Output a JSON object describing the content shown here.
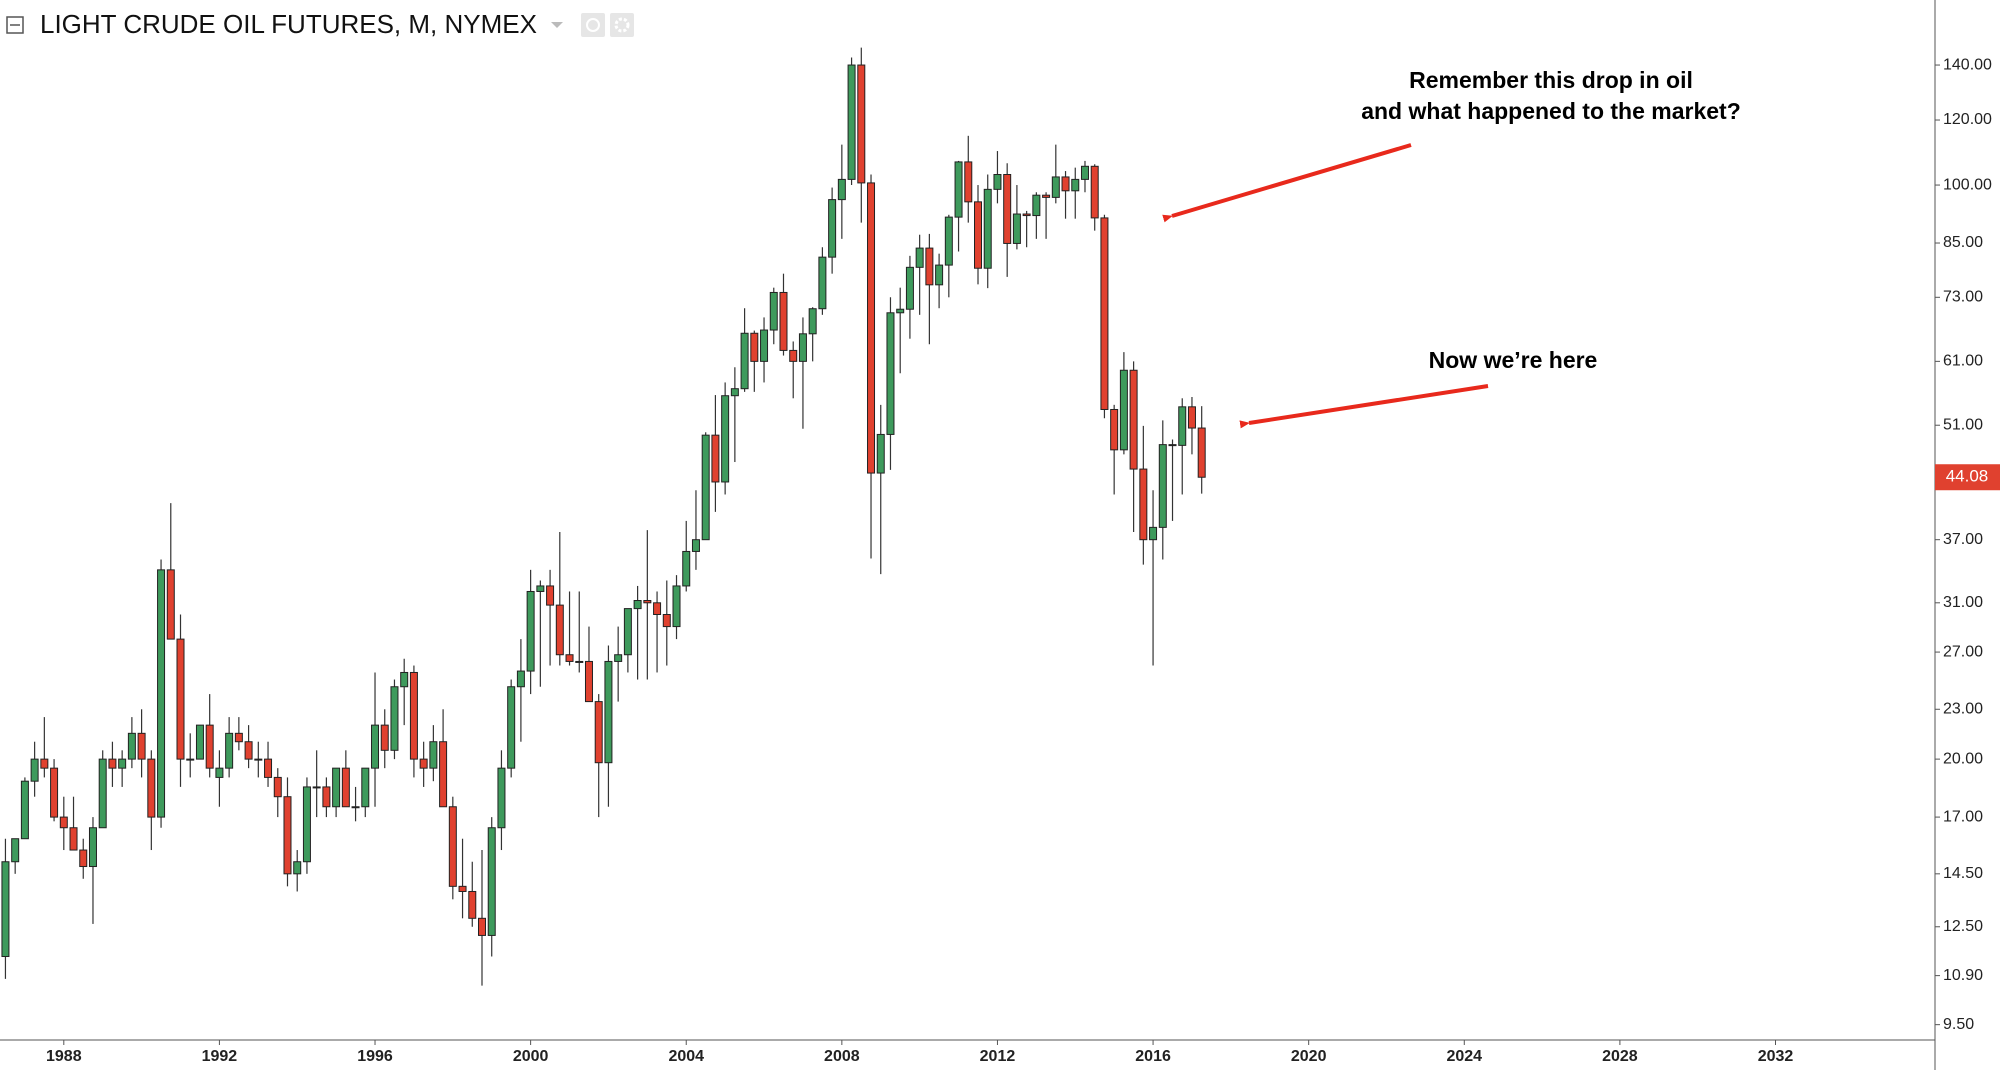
{
  "chart_data": {
    "type": "candlestick",
    "title": "LIGHT CRUDE OIL FUTURES, M, NYMEX",
    "annotations": [
      "Remember this drop in oil",
      "and what happened to the market?",
      "Now we’re here"
    ],
    "log_scale": true,
    "up_color": "#3e9a5c",
    "down_color": "#e0412f",
    "last_price": 44.08,
    "xlim": [
      1986.36,
      2036.1
    ],
    "xticks": [
      1988,
      1992,
      1996,
      2000,
      2004,
      2008,
      2012,
      2016,
      2020,
      2024,
      2028,
      2032
    ],
    "ylim": [
      9.1,
      168
    ],
    "yticks": [
      {
        "value": 9.5,
        "label": "9.50"
      },
      {
        "value": 10.9,
        "label": "10.90"
      },
      {
        "value": 12.5,
        "label": "12.50"
      },
      {
        "value": 14.5,
        "label": "14.50"
      },
      {
        "value": 17,
        "label": "17.00"
      },
      {
        "value": 20,
        "label": "20.00"
      },
      {
        "value": 23,
        "label": "23.00"
      },
      {
        "value": 27,
        "label": "27.00"
      },
      {
        "value": 31,
        "label": "31.00"
      },
      {
        "value": 37,
        "label": "37.00"
      },
      {
        "value": 51,
        "label": "51.00"
      },
      {
        "value": 61,
        "label": "61.00"
      },
      {
        "value": 73,
        "label": "73.00"
      },
      {
        "value": 85,
        "label": "85.00"
      },
      {
        "value": 100,
        "label": "100.00"
      },
      {
        "value": 120,
        "label": "120.00"
      },
      {
        "value": 140,
        "label": "140.00"
      }
    ],
    "x": [
      1986.5,
      1986.75,
      1987,
      1987.25,
      1987.5,
      1987.75,
      1988,
      1988.25,
      1988.5,
      1988.75,
      1989,
      1989.25,
      1989.5,
      1989.75,
      1990,
      1990.25,
      1990.5,
      1990.75,
      1991,
      1991.25,
      1991.5,
      1991.75,
      1992,
      1992.25,
      1992.5,
      1992.75,
      1993,
      1993.25,
      1993.5,
      1993.75,
      1994,
      1994.25,
      1994.5,
      1994.75,
      1995,
      1995.25,
      1995.5,
      1995.75,
      1996,
      1996.25,
      1996.5,
      1996.75,
      1997,
      1997.25,
      1997.5,
      1997.75,
      1998,
      1998.25,
      1998.5,
      1998.75,
      1999,
      1999.25,
      1999.5,
      1999.75,
      2000,
      2000.25,
      2000.5,
      2000.75,
      2001,
      2001.25,
      2001.5,
      2001.75,
      2002,
      2002.25,
      2002.5,
      2002.75,
      2003,
      2003.25,
      2003.5,
      2003.75,
      2004,
      2004.25,
      2004.5,
      2004.75,
      2005,
      2005.25,
      2005.5,
      2005.75,
      2006,
      2006.25,
      2006.5,
      2006.75,
      2007,
      2007.25,
      2007.5,
      2007.75,
      2008,
      2008.25,
      2008.5,
      2008.75,
      2009,
      2009.25,
      2009.5,
      2009.75,
      2010,
      2010.25,
      2010.5,
      2010.75,
      2011,
      2011.25,
      2011.5,
      2011.75,
      2012,
      2012.25,
      2012.5,
      2012.75,
      2013,
      2013.25,
      2013.5,
      2013.75,
      2014,
      2014.25,
      2014.5,
      2014.75,
      2015,
      2015.25,
      2015.5,
      2015.75,
      2016,
      2016.25,
      2016.5,
      2016.75,
      2017,
      2017.25
    ],
    "open": [
      11.5,
      15,
      16,
      18.8,
      20,
      19.5,
      17,
      16.5,
      15.5,
      14.8,
      16.5,
      20,
      19.5,
      20,
      21.5,
      20,
      17,
      34,
      28,
      20,
      20,
      22,
      19,
      19.5,
      21.5,
      21,
      20,
      20,
      19,
      18,
      14.5,
      15,
      18.5,
      18.5,
      17.5,
      19.5,
      17.5,
      17.5,
      19.5,
      22,
      20.5,
      24.5,
      25.5,
      20,
      19.5,
      21,
      17.5,
      14,
      13.8,
      12.8,
      12.2,
      16.5,
      19.5,
      24.5,
      25.6,
      32,
      32.5,
      30.8,
      26.8,
      26.3,
      26.3,
      23.5,
      19.8,
      26.3,
      26.8,
      30.5,
      31.2,
      31,
      30,
      29,
      32.5,
      35.8,
      37,
      49.6,
      43.5,
      55.4,
      56.5,
      66,
      61,
      66.6,
      74,
      62.9,
      61,
      65.9,
      70.7,
      81.7,
      96,
      101.6,
      140,
      100.6,
      44.6,
      49.7,
      69.9,
      70.6,
      79.4,
      83.8,
      75.6,
      79.9,
      91.4,
      106.7,
      95.4,
      79.2,
      98.8,
      103,
      84.9,
      92.2,
      91.8,
      97.2,
      96.6,
      102.3,
      98.4,
      101.6,
      105.4,
      91.2,
      53.3,
      47.6,
      59.5,
      45.1,
      37,
      38.3,
      48.3,
      48.2,
      53.7,
      50.6
    ],
    "high": [
      16,
      16,
      19,
      21,
      22.5,
      20,
      18,
      18,
      16,
      17,
      20.5,
      21,
      20.5,
      22.5,
      23,
      20.5,
      35,
      41,
      30,
      21.5,
      22,
      24,
      20.5,
      22.5,
      22.5,
      22,
      21,
      21,
      19.5,
      19,
      15.5,
      19,
      20.5,
      19,
      19.5,
      20.5,
      18.5,
      19.5,
      25.5,
      23,
      25,
      26.5,
      26,
      21,
      22,
      23,
      18,
      16,
      15,
      15.5,
      17,
      20.5,
      25,
      28,
      34,
      33,
      34,
      37.8,
      32,
      32,
      29,
      24,
      27.5,
      29,
      30.5,
      32.5,
      38,
      32,
      33,
      33.5,
      39,
      42.5,
      50,
      55.5,
      57.5,
      60,
      70.8,
      66.5,
      69,
      75,
      78,
      64.5,
      69,
      71,
      84,
      99.3,
      112,
      143,
      147,
      103,
      54,
      73,
      75,
      82,
      87,
      87.2,
      82.5,
      92,
      107,
      114.8,
      100,
      103,
      110,
      106.3,
      100,
      93,
      98,
      98,
      112,
      104,
      105,
      107,
      106,
      92,
      54,
      62.6,
      61,
      50.9,
      42.5,
      51.7,
      49,
      55,
      55.2,
      53.8
    ],
    "low": [
      10.8,
      14.5,
      16,
      18,
      19,
      16.8,
      15.5,
      15.5,
      14.3,
      12.6,
      16.5,
      18.5,
      18.5,
      19.5,
      19,
      15.5,
      16.5,
      28,
      18.5,
      19,
      20,
      19,
      17.5,
      19,
      20.5,
      19.5,
      19,
      18.5,
      17,
      14,
      13.8,
      14.5,
      17,
      17,
      17,
      17.5,
      16.8,
      17,
      17.5,
      19.5,
      20,
      22,
      19,
      18.5,
      18.8,
      17.5,
      13.5,
      12.8,
      12.5,
      10.6,
      11.5,
      15.5,
      19,
      21,
      24,
      24.5,
      26,
      26,
      26,
      25.5,
      24,
      17,
      17.5,
      23.5,
      25.5,
      25,
      25,
      25.5,
      26,
      28,
      32,
      34,
      38,
      40,
      42,
      46,
      56,
      56,
      57.5,
      64,
      62,
      55,
      50.5,
      61,
      69.5,
      78,
      86,
      100,
      90,
      35.1,
      33.6,
      45,
      59,
      65,
      69.5,
      64,
      70.8,
      73,
      83,
      90,
      75.7,
      74.9,
      95,
      77.3,
      83.5,
      84,
      86,
      86,
      95,
      91,
      91,
      98,
      88,
      52,
      42,
      47,
      37.8,
      34.5,
      26,
      35,
      39,
      42,
      47,
      42.1
    ],
    "close": [
      15,
      16,
      18.8,
      20,
      19.5,
      17,
      16.5,
      15.5,
      14.8,
      16.5,
      20,
      19.5,
      20,
      21.5,
      20,
      17,
      34,
      28,
      20,
      20,
      22,
      19.5,
      19.5,
      21.5,
      21,
      20,
      20,
      19,
      18,
      14.5,
      15,
      18.5,
      18.5,
      17.5,
      19.5,
      17.5,
      17.5,
      19.5,
      22,
      20.5,
      24.5,
      25.5,
      20,
      19.5,
      21,
      17.5,
      14,
      13.8,
      12.8,
      12.2,
      16.5,
      19.5,
      24.5,
      25.6,
      32,
      32.5,
      30.8,
      26.8,
      26.3,
      26.3,
      23.5,
      19.8,
      26.3,
      26.8,
      30.5,
      31.2,
      31,
      30,
      29,
      32.5,
      35.8,
      37,
      49.6,
      43.5,
      55.4,
      56.5,
      66,
      61,
      66.6,
      74,
      62.9,
      61,
      65.9,
      70.7,
      81.7,
      96,
      101.6,
      140,
      100.6,
      44.6,
      49.7,
      69.9,
      70.6,
      79.4,
      83.8,
      75.6,
      79.9,
      91.4,
      106.7,
      95.4,
      79.2,
      98.8,
      103,
      84.9,
      92.2,
      91.8,
      97.2,
      96.6,
      102.3,
      98.4,
      101.6,
      105.4,
      91.2,
      53.3,
      47.6,
      59.5,
      45.1,
      37,
      38.3,
      48.3,
      48.2,
      53.7,
      50.6,
      44.08
    ]
  }
}
